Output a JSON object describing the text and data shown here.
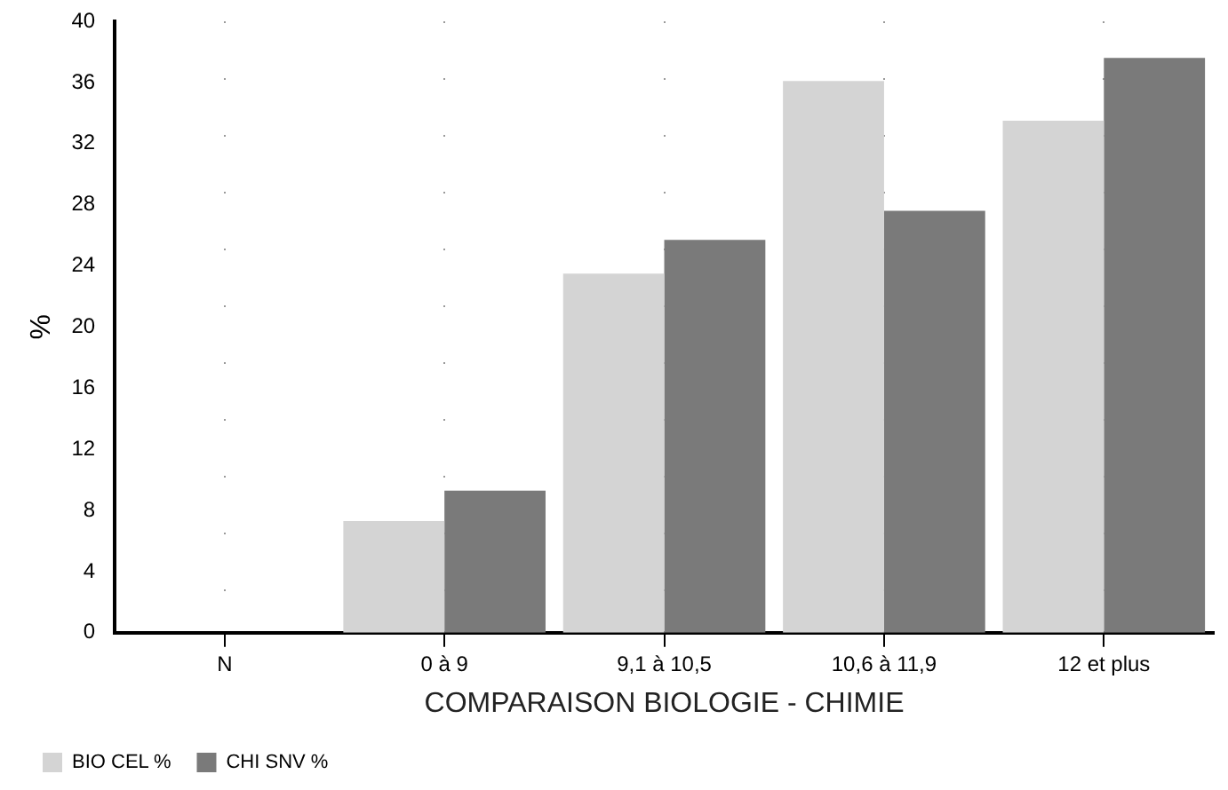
{
  "chart_data": {
    "type": "bar",
    "xlabel": "COMPARAISON BIOLOGIE - CHIMIE",
    "ylabel": "%",
    "categories": [
      "N",
      "0 à 9",
      "9,1 à 10,5",
      "10,6 à 11,9",
      "12 et plus"
    ],
    "series": [
      {
        "name": "BIO CEL %",
        "color": "#d4d4d4",
        "values": [
          null,
          7.3,
          23.5,
          36.1,
          33.5
        ]
      },
      {
        "name": "CHI SNV %",
        "color": "#7a7a7a",
        "values": [
          null,
          9.3,
          25.7,
          27.6,
          37.6
        ]
      }
    ],
    "ylim": [
      0,
      40
    ],
    "yticks": [
      0,
      4,
      8,
      12,
      16,
      20,
      24,
      28,
      32,
      36,
      40
    ],
    "grid": "x",
    "legend": "bottom left"
  }
}
